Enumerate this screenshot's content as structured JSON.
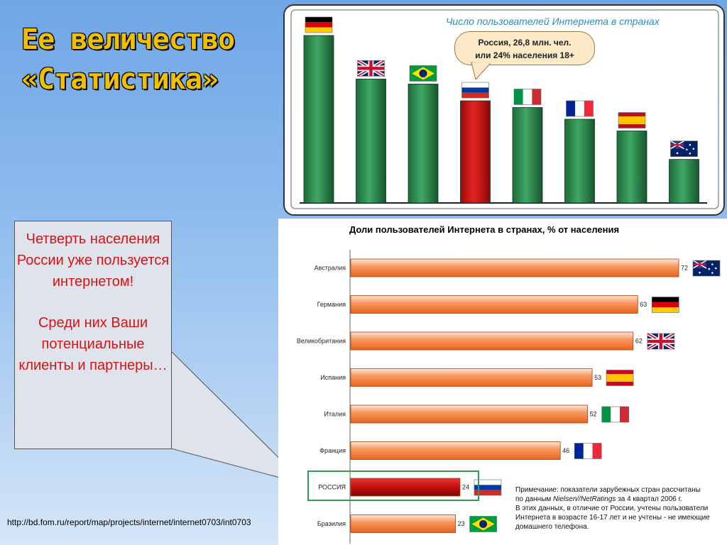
{
  "slide": {
    "title": "Ее величество «Статистика»",
    "callout_p1": "Четверть населения России уже пользуется интернетом!",
    "callout_p2": "Среди них Ваши потенциальные клиенты и партнеры…",
    "source_url": "http://bd.fom.ru/report/map/projects/internet/internet0703/int0703"
  },
  "top_chart": {
    "title": "Число пользователей Интернета в странах",
    "bubble_line1": "Россия, 26,8 млн. чел.",
    "bubble_line2": "или 24% населения 18+",
    "bars": [
      {
        "flag": "germany-flag-icon",
        "color": "#2e8b4f",
        "relative": 1.0
      },
      {
        "flag": "uk-flag-icon",
        "color": "#2e8b4f",
        "relative": 0.74
      },
      {
        "flag": "brazil-flag-icon",
        "color": "#2e8b4f",
        "relative": 0.71
      },
      {
        "flag": "russia-flag-icon",
        "color": "#d41414",
        "relative": 0.61
      },
      {
        "flag": "italy-flag-icon",
        "color": "#2e8b4f",
        "relative": 0.57
      },
      {
        "flag": "france-flag-icon",
        "color": "#2e8b4f",
        "relative": 0.5
      },
      {
        "flag": "spain-flag-icon",
        "color": "#2e8b4f",
        "relative": 0.43
      },
      {
        "flag": "australia-flag-icon",
        "color": "#2e8b4f",
        "relative": 0.26
      }
    ]
  },
  "chart_data": {
    "type": "bar",
    "orientation": "horizontal",
    "title": "Доли пользователей Интернета в странах, % от населения",
    "categories": [
      "Австралия",
      "Германия",
      "Великобритания",
      "Испания",
      "Италия",
      "Франция",
      "РОССИЯ",
      "Бразилия"
    ],
    "values": [
      72,
      63,
      62,
      53,
      52,
      46,
      24,
      23
    ],
    "flags": [
      "australia-flag-icon",
      "germany-flag-icon",
      "uk-flag-icon",
      "spain-flag-icon",
      "italy-flag-icon",
      "france-flag-icon",
      "russia-flag-icon",
      "brazil-flag-icon"
    ],
    "highlight": "РОССИЯ",
    "xlim": [
      0,
      72
    ],
    "colors": {
      "bar": "#f47a38",
      "highlight": "#c40d0d"
    }
  },
  "note": {
    "line1": "Примечание: показатели зарубежных стран рассчитаны",
    "line2_pre": "по данным ",
    "line2_src": "Nielsen//NetRatings",
    "line2_post": " за 4 квартал 2006 г.",
    "line3": "В этих данных, в отличие от России, учтены пользователи",
    "line4": "Интернета в возрасте 16-17 лет и не учтены - не имеющие",
    "line5": "домашнего телефона."
  }
}
